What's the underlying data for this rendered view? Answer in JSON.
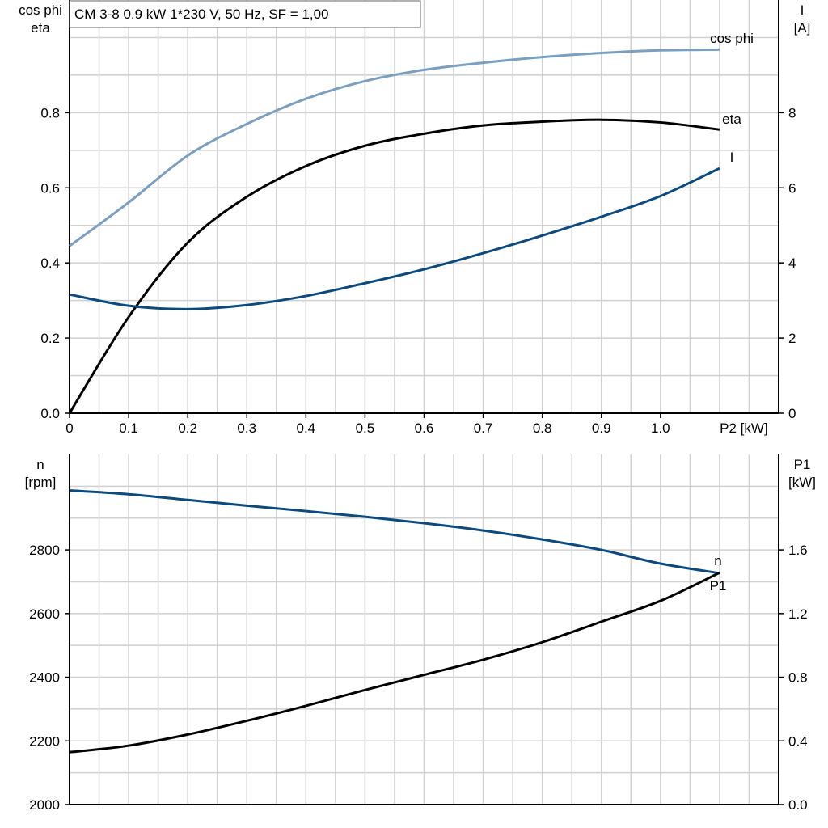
{
  "title": "CM 3-8   0.9 kW   1*230 V, 50 Hz, SF = 1,00",
  "colors": {
    "cos_phi": "#7a9fc0",
    "eta": "#000000",
    "I": "#0a4a80",
    "n": "#0a4a80",
    "P1": "#000000",
    "grid": "#d0d0d0"
  },
  "chart_data": [
    {
      "type": "line",
      "grid": true,
      "xlabel": "P2 [kW]",
      "xlim": [
        0,
        1.2
      ],
      "xticks": [
        "0",
        "0.1",
        "0.2",
        "0.3",
        "0.4",
        "0.5",
        "0.6",
        "0.7",
        "0.8",
        "0.9",
        "1.0"
      ],
      "xtick_values": [
        0,
        0.1,
        0.2,
        0.3,
        0.4,
        0.5,
        0.6,
        0.7,
        0.8,
        0.9,
        1.0
      ],
      "ylabel_left": [
        "cos phi",
        "eta"
      ],
      "ylim_left": [
        0,
        1.1
      ],
      "yticks_left": [
        "0.0",
        "0.2",
        "0.4",
        "0.6",
        "0.8"
      ],
      "ylabel_right": [
        "I",
        "[A]"
      ],
      "ylim_right": [
        0,
        11
      ],
      "yticks_right": [
        "0",
        "2",
        "4",
        "6",
        "8"
      ],
      "x": [
        0,
        0.1,
        0.2,
        0.3,
        0.4,
        0.5,
        0.6,
        0.7,
        0.8,
        0.9,
        1.0,
        1.1
      ],
      "series": [
        {
          "name": "cos phi",
          "axis": "left",
          "values": [
            0.445,
            0.561,
            0.686,
            0.77,
            0.837,
            0.884,
            0.914,
            0.933,
            0.948,
            0.959,
            0.966,
            0.968
          ]
        },
        {
          "name": "eta",
          "axis": "left",
          "values": [
            0.0,
            0.256,
            0.454,
            0.576,
            0.658,
            0.712,
            0.744,
            0.766,
            0.776,
            0.781,
            0.774,
            0.755
          ]
        },
        {
          "name": "I",
          "axis": "right",
          "values": [
            3.16,
            2.86,
            2.77,
            2.88,
            3.12,
            3.46,
            3.83,
            4.26,
            4.73,
            5.23,
            5.78,
            6.52
          ]
        }
      ]
    },
    {
      "type": "line",
      "grid": true,
      "xlim": [
        0,
        1.2
      ],
      "ylabel_left": [
        "n",
        "[rpm]"
      ],
      "ylim_left": [
        2000,
        3100
      ],
      "yticks_left": [
        "2000",
        "2200",
        "2400",
        "2600",
        "2800"
      ],
      "ylabel_right": [
        "P1",
        "[kW]"
      ],
      "ylim_right": [
        0,
        2.2
      ],
      "yticks_right": [
        "0.0",
        "0.4",
        "0.8",
        "1.2",
        "1.6"
      ],
      "x": [
        0,
        0.1,
        0.2,
        0.3,
        0.4,
        0.5,
        0.6,
        0.7,
        0.8,
        0.9,
        1.0,
        1.1
      ],
      "series": [
        {
          "name": "n",
          "axis": "left",
          "values": [
            2987,
            2975,
            2957,
            2939,
            2922,
            2904,
            2884,
            2861,
            2833,
            2800,
            2757,
            2727
          ]
        },
        {
          "name": "P1",
          "axis": "right",
          "values": [
            0.329,
            0.37,
            0.44,
            0.526,
            0.62,
            0.72,
            0.815,
            0.91,
            1.02,
            1.149,
            1.28,
            1.457
          ]
        }
      ]
    }
  ]
}
